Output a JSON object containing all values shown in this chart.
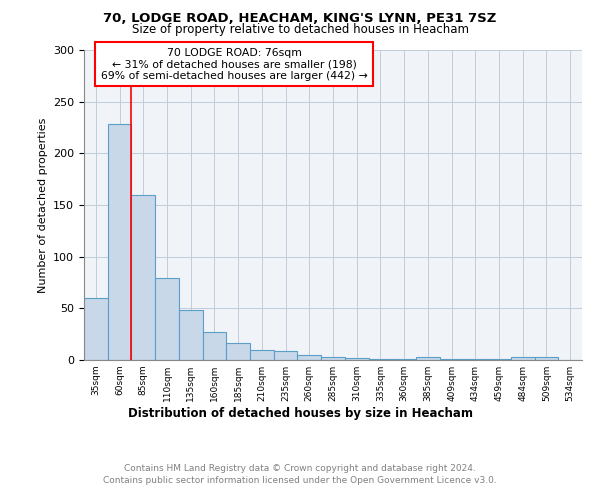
{
  "title1": "70, LODGE ROAD, HEACHAM, KING'S LYNN, PE31 7SZ",
  "title2": "Size of property relative to detached houses in Heacham",
  "xlabel": "Distribution of detached houses by size in Heacham",
  "ylabel": "Number of detached properties",
  "categories": [
    "35sqm",
    "60sqm",
    "85sqm",
    "110sqm",
    "135sqm",
    "160sqm",
    "185sqm",
    "210sqm",
    "235sqm",
    "260sqm",
    "285sqm",
    "310sqm",
    "335sqm",
    "360sqm",
    "385sqm",
    "409sqm",
    "434sqm",
    "459sqm",
    "484sqm",
    "509sqm",
    "534sqm"
  ],
  "values": [
    60,
    228,
    160,
    79,
    48,
    27,
    16,
    10,
    9,
    5,
    3,
    2,
    1,
    1,
    3,
    1,
    1,
    1,
    3,
    3,
    0
  ],
  "bar_color": "#c8d8e8",
  "bar_edge_color": "#5a9ec9",
  "red_line_x": 1.5,
  "annotation_text": "70 LODGE ROAD: 76sqm\n← 31% of detached houses are smaller (198)\n69% of semi-detached houses are larger (442) →",
  "annotation_box_color": "white",
  "annotation_box_edge": "red",
  "footer1": "Contains HM Land Registry data © Crown copyright and database right 2024.",
  "footer2": "Contains public sector information licensed under the Open Government Licence v3.0.",
  "ylim": [
    0,
    300
  ],
  "yticks": [
    0,
    50,
    100,
    150,
    200,
    250,
    300
  ],
  "background_color": "#f0f4f8",
  "grid_color": "#c0ccd8"
}
